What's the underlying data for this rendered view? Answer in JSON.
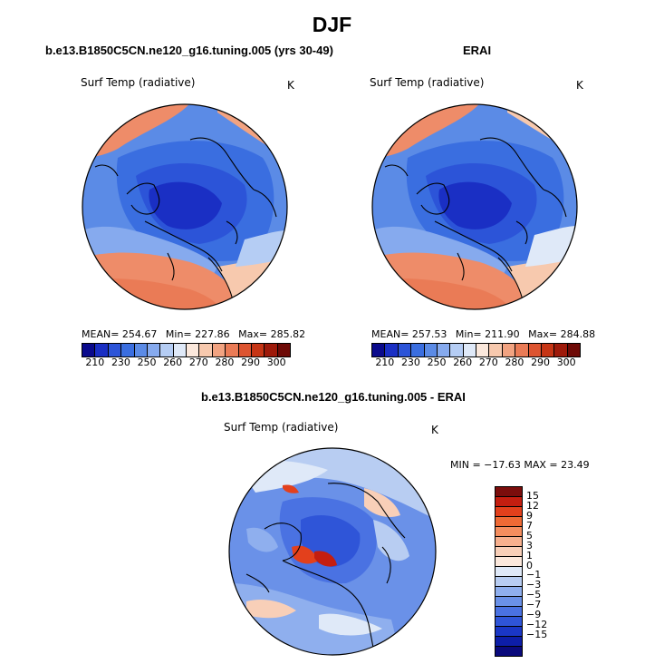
{
  "season": "DJF",
  "panels": {
    "model": {
      "title": "b.e13.B1850C5CN.ne120_g16.tuning.005 (yrs 30-49)",
      "variable": "Surf Temp (radiative)",
      "units": "K",
      "mean_label": "MEAN= 254.67",
      "min_label": "Min= 227.86",
      "max_label": "Max= 285.82"
    },
    "obs": {
      "title": "ERAI",
      "variable": "Surf Temp (radiative)",
      "units": "K",
      "mean_label": "MEAN= 257.53",
      "min_label": "Min= 211.90",
      "max_label": "Max= 284.88"
    },
    "diff": {
      "title": "b.e13.B1850C5CN.ne120_g16.tuning.005 - ERAI",
      "variable": "Surf Temp (radiative)",
      "units": "K",
      "minmax_label": "MIN = −17.63  MAX =  23.49"
    }
  },
  "abs_colorbar": {
    "colors": [
      "#0a0a8c",
      "#1a2fc4",
      "#2c54d8",
      "#3a6ee0",
      "#5b8be6",
      "#86aaee",
      "#b5cdf4",
      "#dfe9f8",
      "#fbe8dc",
      "#f7c9ae",
      "#f2a381",
      "#ea7b56",
      "#dd5430",
      "#c63515",
      "#9e1a0a",
      "#6e0a06"
    ],
    "labels": [
      "210",
      "230",
      "250",
      "260",
      "270",
      "280",
      "290",
      "300"
    ]
  },
  "diff_colorbar": {
    "colors": [
      "#7b0d0c",
      "#c41e10",
      "#e3401c",
      "#ef6a35",
      "#f58e5f",
      "#f7b08e",
      "#f8cfb8",
      "#fbe8dc",
      "#dfe9f8",
      "#b8cdf2",
      "#8fafee",
      "#6a91e8",
      "#4a72e2",
      "#2f55d8",
      "#1a37c6",
      "#0d1ea8",
      "#0a0a7c"
    ],
    "labels": [
      "15",
      "12",
      "9",
      "7",
      "5",
      "3",
      "1",
      "0",
      "−1",
      "−3",
      "−5",
      "−7",
      "−9",
      "−12",
      "−15"
    ]
  }
}
